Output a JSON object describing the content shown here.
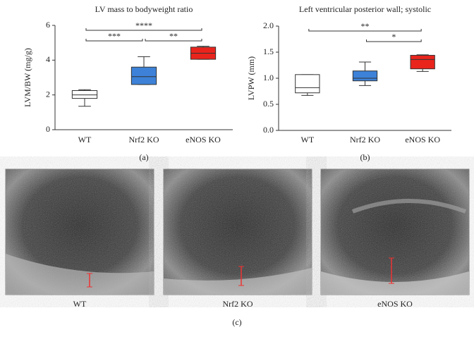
{
  "chart_data": [
    {
      "type": "box",
      "title": "LV mass to bodyweight ratio",
      "ylabel": "LVM/BW (mg/g)",
      "label": "(a)",
      "categories": [
        "WT",
        "Nrf2 KO",
        "eNOS KO"
      ],
      "boxes": [
        {
          "min": 1.35,
          "q1": 1.8,
          "median": 2.0,
          "q3": 2.25,
          "max": 2.3,
          "color": "#ffffff"
        },
        {
          "min": 2.6,
          "q1": 2.6,
          "median": 3.05,
          "q3": 3.6,
          "max": 4.2,
          "color": "#3d82d8"
        },
        {
          "min": 4.05,
          "q1": 4.05,
          "median": 4.4,
          "q3": 4.75,
          "max": 4.8,
          "color": "#e8241d"
        }
      ],
      "ylim": [
        0,
        6
      ],
      "yticks": [
        0,
        2,
        4,
        6
      ],
      "annotations": [
        {
          "text": "****",
          "between": [
            "WT",
            "eNOS KO"
          ]
        },
        {
          "text": "***",
          "between": [
            "WT",
            "Nrf2 KO"
          ]
        },
        {
          "text": "**",
          "between": [
            "Nrf2 KO",
            "eNOS KO"
          ]
        }
      ]
    },
    {
      "type": "box",
      "title": "Left ventricular posterior wall; systolic",
      "ylabel": "LVPW (mm)",
      "label": "(b)",
      "categories": [
        "WT",
        "Nrf2 KO",
        "eNOS KO"
      ],
      "boxes": [
        {
          "min": 0.67,
          "q1": 0.72,
          "median": 0.82,
          "q3": 1.07,
          "max": 1.07,
          "color": "#ffffff"
        },
        {
          "min": 0.86,
          "q1": 0.95,
          "median": 1.0,
          "q3": 1.14,
          "max": 1.31,
          "color": "#3d82d8"
        },
        {
          "min": 1.13,
          "q1": 1.18,
          "median": 1.36,
          "q3": 1.44,
          "max": 1.45,
          "color": "#e8241d"
        }
      ],
      "ylim": [
        0,
        2.0
      ],
      "yticks": [
        {
          "value": 0,
          "label": "0.0"
        },
        {
          "value": 0.5,
          "label": "0.5"
        },
        {
          "value": 1.0,
          "label": "1.0"
        },
        {
          "value": 1.5,
          "label": "1.5"
        },
        {
          "value": 2.0,
          "label": "2.0"
        }
      ],
      "annotations": [
        {
          "text": "**",
          "between": [
            "WT",
            "eNOS KO"
          ]
        },
        {
          "text": "*",
          "between": [
            "Nrf2 KO",
            "eNOS KO"
          ]
        }
      ]
    }
  ],
  "images": {
    "captions": [
      "WT",
      "Nrf2 KO",
      "eNOS KO"
    ],
    "label": "(c)"
  }
}
